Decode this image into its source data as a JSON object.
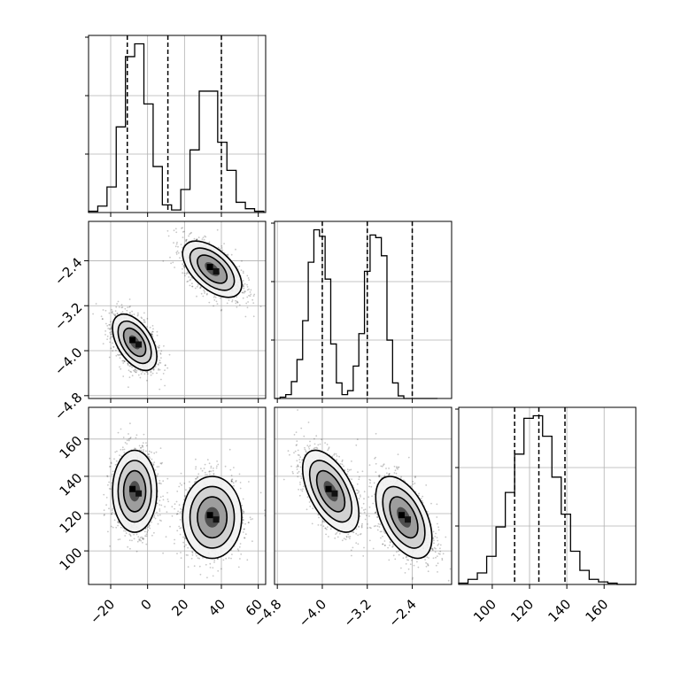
{
  "chart_data": {
    "type": "corner",
    "grid": true,
    "params": [
      {
        "label": "",
        "range": [
          -32,
          64
        ],
        "ticks": [
          -20,
          0,
          20,
          40,
          60
        ],
        "tick_labels": [
          "−20",
          "0",
          "20",
          "40",
          "60"
        ]
      },
      {
        "label": "",
        "range": [
          -4.85,
          -1.7
        ],
        "ticks": [
          -4.8,
          -4.0,
          -3.2,
          -2.4
        ],
        "tick_labels": [
          "−4.8",
          "−4.0",
          "−3.2",
          "−2.4"
        ]
      },
      {
        "label": "",
        "range": [
          82,
          177
        ],
        "ticks": [
          100,
          120,
          140,
          160
        ],
        "tick_labels": [
          "100",
          "120",
          "140",
          "160"
        ]
      }
    ],
    "modes": [
      {
        "weight": 0.5,
        "mean": [
          -7,
          -3.85,
          132
        ],
        "sd": [
          6,
          0.25,
          11
        ],
        "corr": {
          "0-1": -0.5,
          "0-2": 0.0,
          "1-2": -0.55
        }
      },
      {
        "weight": 0.5,
        "mean": [
          35,
          -2.55,
          118
        ],
        "sd": [
          8,
          0.25,
          11
        ],
        "corr": {
          "0-1": -0.55,
          "0-2": 0.0,
          "1-2": -0.5
        }
      }
    ],
    "quantiles": [
      [
        -11,
        11,
        40
      ],
      [
        -4.0,
        -3.2,
        -2.4
      ],
      [
        112,
        125,
        139
      ]
    ],
    "histograms": [
      {
        "param": 0,
        "bin_edges": [
          -32,
          -27,
          -22,
          -17,
          -12,
          -7,
          -2,
          3,
          8,
          13,
          18,
          23,
          28,
          33,
          38,
          43,
          48,
          53,
          58,
          63
        ],
        "counts": [
          1,
          5,
          20,
          67,
          122,
          132,
          85,
          36,
          6,
          2,
          18,
          49,
          95,
          95,
          55,
          33,
          8,
          3,
          1
        ]
      },
      {
        "param": 1,
        "bin_edges": [
          -4.85,
          -4.75,
          -4.65,
          -4.55,
          -4.45,
          -4.35,
          -4.25,
          -4.15,
          -4.05,
          -3.95,
          -3.85,
          -3.75,
          -3.65,
          -3.55,
          -3.45,
          -3.35,
          -3.25,
          -3.15,
          -3.05,
          -2.95,
          -2.85,
          -2.75,
          -2.65,
          -2.55,
          -2.45,
          -2.35,
          -2.25,
          -2.15,
          -2.05,
          -1.95
        ],
        "counts": [
          0,
          1,
          3,
          13,
          30,
          60,
          105,
          130,
          125,
          92,
          42,
          12,
          3,
          6,
          25,
          50,
          98,
          126,
          124,
          110,
          45,
          12,
          2,
          0,
          0,
          0,
          0,
          0,
          0
        ]
      },
      {
        "param": 2,
        "bin_edges": [
          82,
          87,
          92,
          97,
          102,
          107,
          112,
          117,
          122,
          127,
          132,
          137,
          142,
          147,
          152,
          157,
          162,
          167,
          172,
          177
        ],
        "counts": [
          1,
          4,
          9,
          22,
          45,
          72,
          102,
          130,
          132,
          116,
          84,
          55,
          26,
          11,
          4,
          2,
          1,
          0,
          0
        ]
      }
    ]
  }
}
